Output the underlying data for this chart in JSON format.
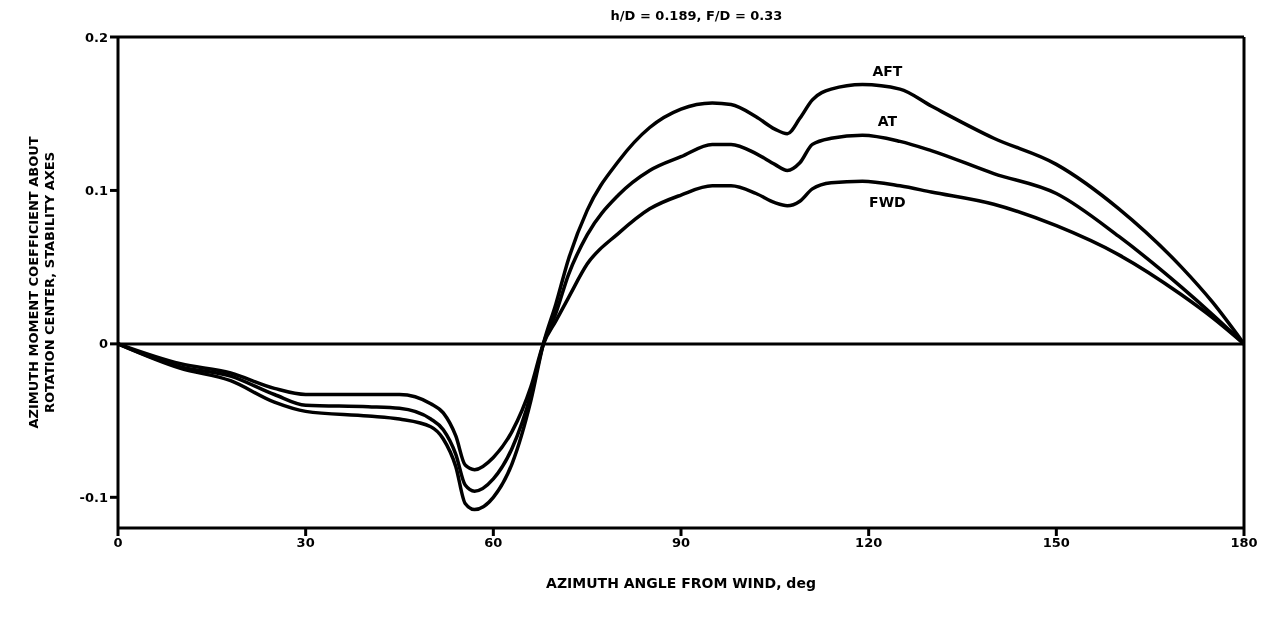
{
  "chart_data": {
    "type": "line",
    "title": "h/D = 0.189, F/D = 0.33",
    "xlabel": "AZIMUTH ANGLE FROM WIND, deg",
    "ylabel": "AZIMUTH MOMENT COEFFICIENT ABOUT\nROTATION CENTER, STABILITY AXES",
    "x": [
      0,
      10,
      18,
      25,
      30,
      40,
      45,
      50,
      52,
      54,
      55.5,
      57,
      60,
      63,
      66,
      68,
      70,
      72,
      75,
      80,
      85,
      90,
      95,
      98,
      102,
      105,
      107,
      109,
      111,
      114,
      119,
      125,
      130,
      140,
      150,
      160,
      170,
      175,
      180
    ],
    "series": [
      {
        "name": "AFT",
        "color": "#000000",
        "values": [
          0,
          -0.016,
          -0.024,
          -0.038,
          -0.044,
          -0.047,
          -0.049,
          -0.054,
          -0.062,
          -0.08,
          -0.104,
          -0.108,
          -0.1,
          -0.078,
          -0.037,
          0,
          0.026,
          0.055,
          0.087,
          0.119,
          0.141,
          0.153,
          0.157,
          0.156,
          0.148,
          0.14,
          0.137,
          0.147,
          0.159,
          0.166,
          0.169,
          0.166,
          0.155,
          0.134,
          0.117,
          0.088,
          0.05,
          0.027,
          0
        ]
      },
      {
        "name": "AT",
        "color": "#000000",
        "values": [
          0,
          -0.015,
          -0.021,
          -0.033,
          -0.04,
          -0.041,
          -0.042,
          -0.049,
          -0.056,
          -0.072,
          -0.092,
          -0.096,
          -0.088,
          -0.068,
          -0.033,
          0,
          0.02,
          0.045,
          0.071,
          0.097,
          0.113,
          0.122,
          0.13,
          0.13,
          0.124,
          0.117,
          0.113,
          0.118,
          0.13,
          0.134,
          0.136,
          0.132,
          0.126,
          0.111,
          0.098,
          0.07,
          0.037,
          0.019,
          0
        ]
      },
      {
        "name": "FWD",
        "color": "#000000",
        "values": [
          0,
          -0.013,
          -0.019,
          -0.029,
          -0.033,
          -0.033,
          -0.033,
          -0.039,
          -0.045,
          -0.06,
          -0.079,
          -0.082,
          -0.074,
          -0.057,
          -0.028,
          0,
          0.015,
          0.03,
          0.052,
          0.072,
          0.088,
          0.097,
          0.103,
          0.103,
          0.098,
          0.092,
          0.09,
          0.093,
          0.101,
          0.105,
          0.106,
          0.103,
          0.099,
          0.091,
          0.077,
          0.058,
          0.032,
          0.017,
          0
        ]
      }
    ],
    "xlim": [
      0,
      180
    ],
    "xticks": [
      0,
      30,
      60,
      90,
      120,
      150,
      180
    ],
    "ylim": [
      -0.12,
      0.2
    ],
    "yticks": [
      -0.1,
      0,
      0.1,
      0.2
    ],
    "ref_lines": [
      {
        "axis": "y",
        "value": 0,
        "color": "#000000"
      }
    ],
    "grid": false,
    "legend": false,
    "marker": "none",
    "line_style": "solid"
  }
}
